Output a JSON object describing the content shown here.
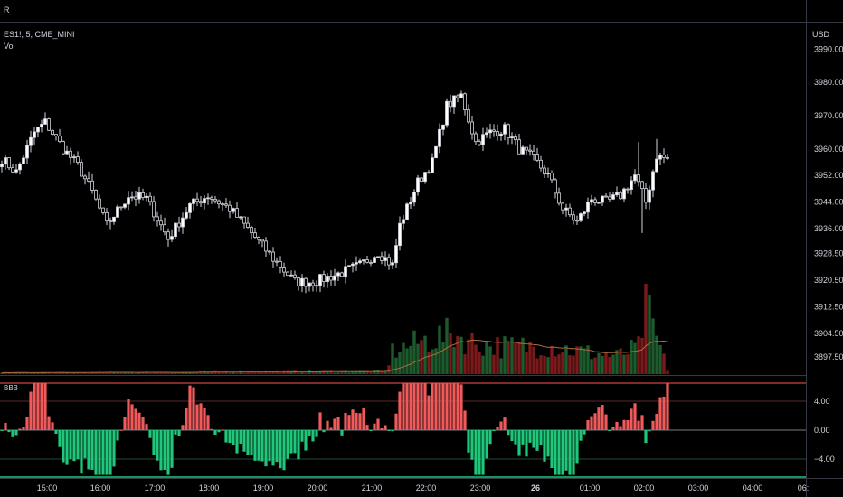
{
  "header": {
    "toolbar_label": "R"
  },
  "main_pane": {
    "symbol_label": "ES1!, 5, CME_MINI",
    "volume_label": "Vol",
    "currency": "USD"
  },
  "indicator_pane": {
    "label": "BBB"
  },
  "chart_data": [
    {
      "type": "candlestick",
      "ylim": [
        3892,
        3998
      ],
      "y_ticks": [
        "3990.00",
        "3980.00",
        "3970.00",
        "3960.00",
        "3952.00",
        "3944.00",
        "3936.00",
        "3928.50",
        "3920.50",
        "3912.50",
        "3904.50",
        "3897.50"
      ],
      "x_ticks": [
        "15:00",
        "16:00",
        "17:00",
        "18:00",
        "19:00",
        "20:00",
        "21:00",
        "22:00",
        "23:00",
        "26",
        "01:00",
        "02:00",
        "03:00",
        "04:00",
        "06:"
      ],
      "anchors": [
        {
          "t": 0,
          "v": 3957
        },
        {
          "t": 4,
          "v": 3953
        },
        {
          "t": 9,
          "v": 3965
        },
        {
          "t": 12,
          "v": 3968
        },
        {
          "t": 17,
          "v": 3960
        },
        {
          "t": 21,
          "v": 3955
        },
        {
          "t": 25,
          "v": 3947
        },
        {
          "t": 29,
          "v": 3937
        },
        {
          "t": 35,
          "v": 3946
        },
        {
          "t": 40,
          "v": 3945
        },
        {
          "t": 46,
          "v": 3933
        },
        {
          "t": 52,
          "v": 3943
        },
        {
          "t": 57,
          "v": 3946
        },
        {
          "t": 63,
          "v": 3942
        },
        {
          "t": 68,
          "v": 3936
        },
        {
          "t": 75,
          "v": 3927
        },
        {
          "t": 81,
          "v": 3920
        },
        {
          "t": 86,
          "v": 3920
        },
        {
          "t": 92,
          "v": 3922
        },
        {
          "t": 99,
          "v": 3925
        },
        {
          "t": 104,
          "v": 3929
        },
        {
          "t": 108,
          "v": 3925
        },
        {
          "t": 110,
          "v": 3937
        },
        {
          "t": 115,
          "v": 3950
        },
        {
          "t": 119,
          "v": 3956
        },
        {
          "t": 123,
          "v": 3973
        },
        {
          "t": 127,
          "v": 3976
        },
        {
          "t": 131,
          "v": 3962
        },
        {
          "t": 135,
          "v": 3965
        },
        {
          "t": 139,
          "v": 3966
        },
        {
          "t": 143,
          "v": 3960
        },
        {
          "t": 147,
          "v": 3957
        },
        {
          "t": 151,
          "v": 3952
        },
        {
          "t": 155,
          "v": 3942
        },
        {
          "t": 159,
          "v": 3938
        },
        {
          "t": 163,
          "v": 3945
        },
        {
          "t": 167,
          "v": 3944
        },
        {
          "t": 171,
          "v": 3946
        },
        {
          "t": 175,
          "v": 3952
        },
        {
          "t": 178,
          "v": 3944
        },
        {
          "t": 181,
          "v": 3958
        },
        {
          "t": 184,
          "v": 3957
        }
      ],
      "volume_profile": [
        {
          "t": 0,
          "v": 0.015
        },
        {
          "t": 106,
          "v": 0.03
        },
        {
          "t": 108,
          "v": 0.25
        },
        {
          "t": 115,
          "v": 0.35
        },
        {
          "t": 125,
          "v": 0.45
        },
        {
          "t": 130,
          "v": 0.35
        },
        {
          "t": 140,
          "v": 0.3
        },
        {
          "t": 150,
          "v": 0.32
        },
        {
          "t": 160,
          "v": 0.25
        },
        {
          "t": 170,
          "v": 0.2
        },
        {
          "t": 176,
          "v": 0.3
        },
        {
          "t": 178,
          "v": 0.75
        },
        {
          "t": 184,
          "v": 0.05
        }
      ]
    },
    {
      "type": "bar",
      "name": "BBB",
      "ylim": [
        -6.5,
        6.5
      ],
      "y_ticks": [
        "4.00",
        "0.00",
        "−4.00"
      ],
      "colors": {
        "positive": "#f05a5a",
        "negative": "#1fc77a"
      }
    }
  ],
  "colors": {
    "up": "#ffffff",
    "down": "#000000",
    "vol_up": "#1c5b2e",
    "vol_down": "#7a1a1a",
    "ma": "#b06a3a",
    "band": "#ff5252",
    "baseline": "#787b86"
  }
}
